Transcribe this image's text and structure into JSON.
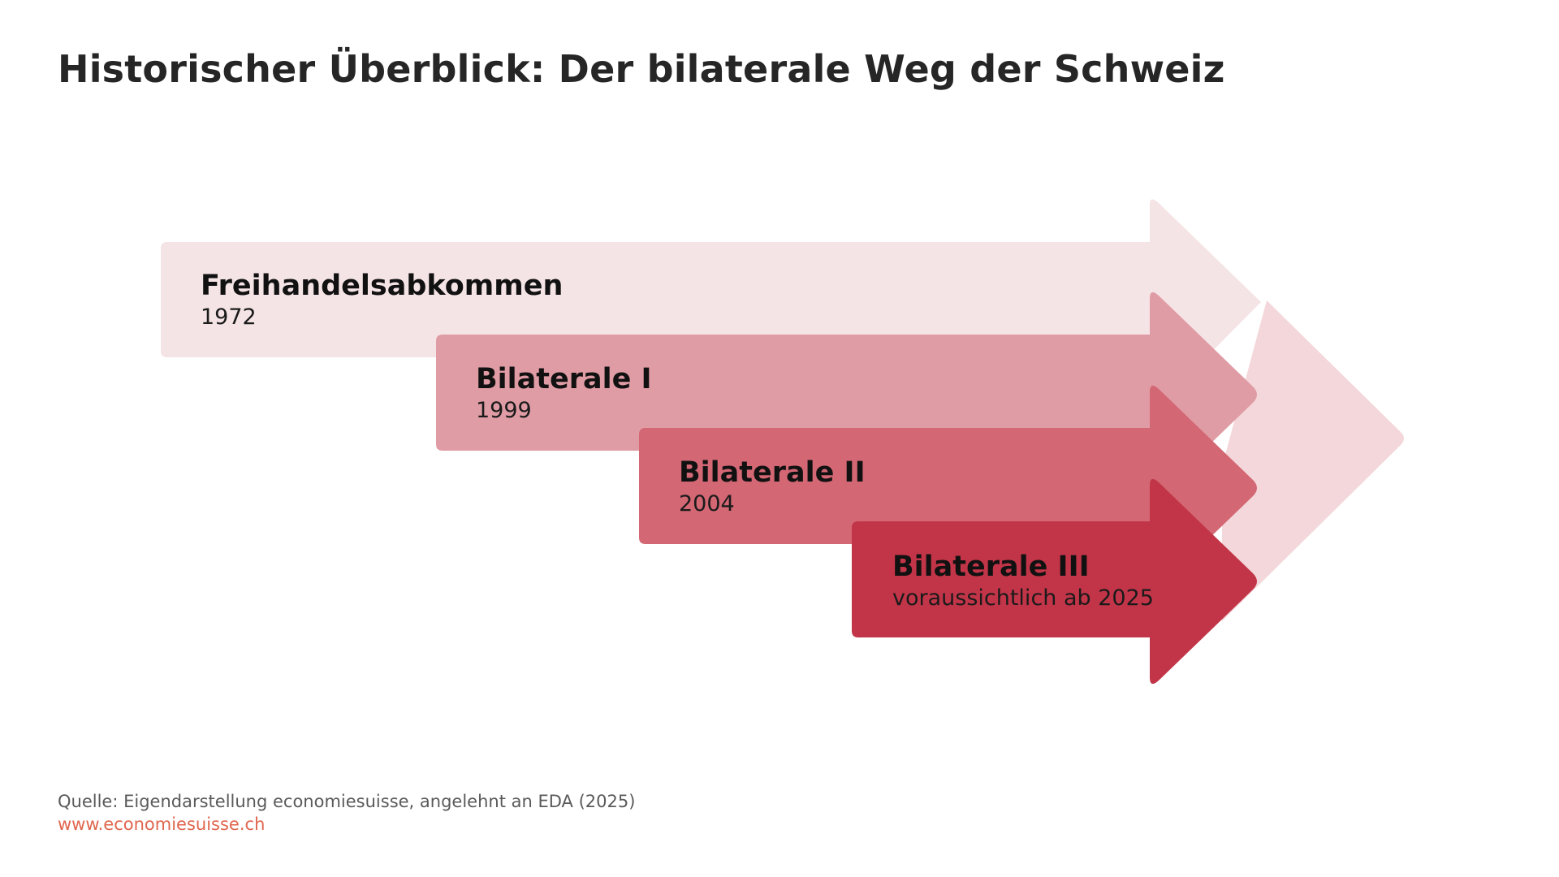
{
  "title": "Historischer Überblick: Der bilaterale Weg der Schweiz",
  "stages": [
    {
      "name": "Freihandelsabkommen",
      "date": "1972",
      "color": "#f5e4e6"
    },
    {
      "name": "Bilaterale I",
      "date": "1999",
      "color": "#e09ca5"
    },
    {
      "name": "Bilaterale II",
      "date": "2004",
      "color": "#d36774"
    },
    {
      "name": "Bilaterale III",
      "date": "voraussichtlich ab 2025",
      "color": "#c23548"
    }
  ],
  "background_arrow_color": "#f3d7da",
  "footer": {
    "source": "Quelle: Eigendarstellung economiesuisse, angelehnt an EDA (2025)",
    "link": "www.economiesuisse.ch",
    "link_color": "#e0664e"
  }
}
